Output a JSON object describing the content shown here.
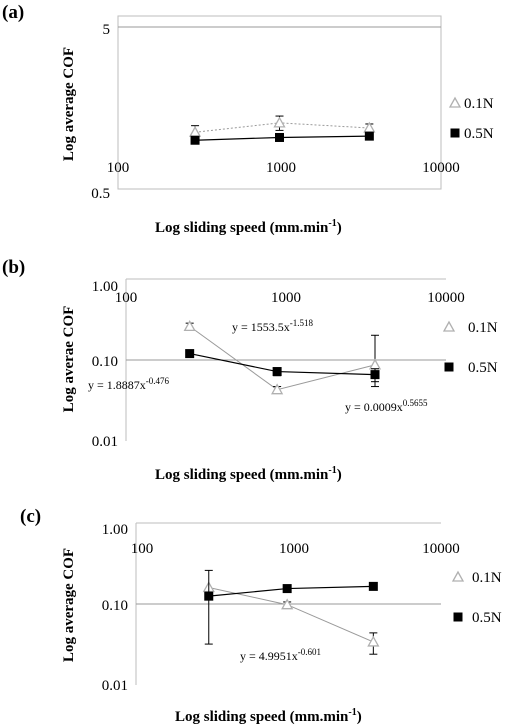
{
  "panels": [
    {
      "label": "(a)",
      "xlabel": "Log sliding speed (mm.min",
      "xlabel_sup": "-1",
      "xlabel_end": ")",
      "ylabel": "Log average COF",
      "x_ticks": [
        "100",
        "1000",
        "10000"
      ],
      "y_ticks": [
        "5",
        "0.5"
      ]
    },
    {
      "label": "(b)",
      "xlabel": "Log sliding speed (mm.min",
      "xlabel_sup": "-1",
      "xlabel_end": ")",
      "ylabel": "Log averae COF",
      "x_ticks": [
        "100",
        "1000",
        "10000"
      ],
      "y_ticks": [
        "1.00",
        "0.10",
        "0.01"
      ],
      "equations": [
        {
          "base": "y = 1553.5x",
          "exp": "-1.518"
        },
        {
          "base": "y = 1.8887x",
          "exp": "-0.476"
        },
        {
          "base": "y = 0.0009x",
          "exp": "0.5655"
        }
      ]
    },
    {
      "label": "(c)",
      "xlabel": "Log sliding speed (mm.min",
      "xlabel_sup": "-1",
      "xlabel_end": ")",
      "ylabel": "Log average COF",
      "x_ticks": [
        "100",
        "1000",
        "10000"
      ],
      "y_ticks": [
        "1.00",
        "0.10",
        "0.01"
      ],
      "equations": [
        {
          "base": "y = 4.9951x",
          "exp": "-0.601"
        }
      ]
    }
  ],
  "legend": {
    "s1": "0.1N",
    "s2": "0.5N"
  },
  "colors": {
    "s1_marker": "#b0b0b0",
    "s1_line": "#9a9a9a",
    "s2_marker": "#000000",
    "s2_line": "#000000",
    "frame": "#bdbdbd",
    "grid": "#9a9a9a"
  },
  "chart_data": [
    {
      "type": "scatter",
      "title": "",
      "xlabel": "Log sliding speed (mm.min-1)",
      "ylabel": "Log average COF",
      "xscale": "log",
      "yscale": "log",
      "xlim": [
        100,
        10000
      ],
      "ylim": [
        0.5,
        5
      ],
      "grid": "horizontal at 5",
      "legend": "right",
      "series": [
        {
          "name": "0.1N",
          "marker": "open-triangle",
          "line": "dotted",
          "x": [
            300,
            1000,
            3600
          ],
          "y": [
            1.12,
            1.28,
            1.19
          ],
          "err_lo": [
            0.11,
            0.13,
            0.07
          ],
          "err_hi": [
            0.11,
            0.13,
            0.07
          ]
        },
        {
          "name": "0.5N",
          "marker": "filled-square",
          "line": "solid",
          "x": [
            300,
            1000,
            3600
          ],
          "y": [
            1.0,
            1.04,
            1.06
          ],
          "err_lo": [
            0,
            0,
            0
          ],
          "err_hi": [
            0,
            0,
            0
          ]
        }
      ]
    },
    {
      "type": "scatter",
      "title": "",
      "xlabel": "Log sliding speed (mm.min-1)",
      "ylabel": "Log averae COF",
      "xscale": "log",
      "yscale": "log",
      "xlim": [
        100,
        10000
      ],
      "ylim": [
        0.01,
        1
      ],
      "grid": "horizontal at 0.10",
      "legend": "right",
      "series": [
        {
          "name": "0.1N",
          "marker": "open-triangle",
          "line": "solid",
          "x": [
            250,
            880,
            3600
          ],
          "y": [
            0.26,
            0.043,
            0.087
          ],
          "err_lo": [
            0.025,
            0.004,
            0.04
          ],
          "err_hi": [
            0.025,
            0.004,
            0.115
          ]
        },
        {
          "name": "0.5N",
          "marker": "filled-square",
          "line": "solid",
          "x": [
            250,
            880,
            3600
          ],
          "y": [
            0.12,
            0.072,
            0.066
          ],
          "err_lo": [
            0,
            0.008,
            0.012
          ],
          "err_hi": [
            0,
            0.008,
            0.012
          ]
        }
      ],
      "annotations": [
        "y = 1553.5x-1.518",
        "y = 1.8887x-0.476",
        "y = 0.0009x0.5655"
      ]
    },
    {
      "type": "scatter",
      "title": "",
      "xlabel": "Log sliding speed (mm.min-1)",
      "ylabel": "Log average COF",
      "xscale": "log",
      "yscale": "log",
      "xlim": [
        100,
        10000
      ],
      "ylim": [
        0.01,
        1
      ],
      "grid": "horizontal at 0.10",
      "legend": "right",
      "series": [
        {
          "name": "0.1N",
          "marker": "open-triangle",
          "line": "solid",
          "x": [
            300,
            980,
            3600
          ],
          "y": [
            0.16,
            0.098,
            0.034
          ],
          "err_lo": [
            0,
            0.008,
            0.01
          ],
          "err_hi": [
            0,
            0.008,
            0.01
          ]
        },
        {
          "name": "0.5N",
          "marker": "filled-square",
          "line": "solid",
          "x": [
            300,
            980,
            3600
          ],
          "y": [
            0.125,
            0.155,
            0.165
          ],
          "err_lo": [
            0.093,
            0,
            0
          ],
          "err_hi": [
            0.135,
            0,
            0
          ]
        }
      ],
      "annotations": [
        "y = 4.9951x-0.601"
      ]
    }
  ]
}
